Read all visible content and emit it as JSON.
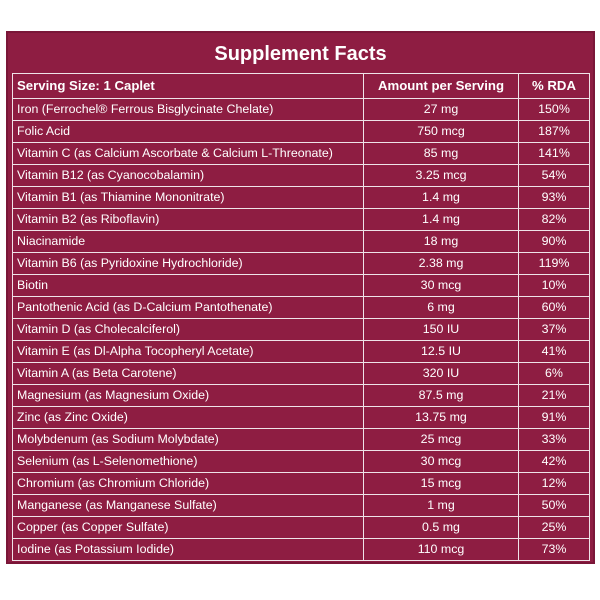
{
  "title": "Supplement Facts",
  "header": {
    "serving": "Serving Size: 1 Caplet",
    "amount": "Amount per Serving",
    "rda": "% RDA"
  },
  "rows": [
    {
      "name": "Iron (Ferrochel® Ferrous Bisglycinate Chelate)",
      "amount": "27 mg",
      "rda": "150%"
    },
    {
      "name": "Folic Acid",
      "amount": "750 mcg",
      "rda": "187%"
    },
    {
      "name": "Vitamin C (as Calcium Ascorbate & Calcium L-Threonate)",
      "amount": "85 mg",
      "rda": "141%"
    },
    {
      "name": "Vitamin B12 (as Cyanocobalamin)",
      "amount": "3.25 mcg",
      "rda": "54%"
    },
    {
      "name": "Vitamin B1 (as Thiamine Mononitrate)",
      "amount": "1.4 mg",
      "rda": "93%"
    },
    {
      "name": "Vitamin B2 (as Riboflavin)",
      "amount": "1.4 mg",
      "rda": "82%"
    },
    {
      "name": "Niacinamide",
      "amount": "18 mg",
      "rda": "90%"
    },
    {
      "name": "Vitamin B6 (as Pyridoxine Hydrochloride)",
      "amount": "2.38 mg",
      "rda": "119%"
    },
    {
      "name": "Biotin",
      "amount": "30 mcg",
      "rda": "10%"
    },
    {
      "name": "Pantothenic Acid (as D-Calcium Pantothenate)",
      "amount": "6 mg",
      "rda": "60%"
    },
    {
      "name": "Vitamin D (as Cholecalciferol)",
      "amount": "150 IU",
      "rda": "37%"
    },
    {
      "name": "Vitamin E (as Dl-Alpha Tocopheryl Acetate)",
      "amount": "12.5 IU",
      "rda": "41%"
    },
    {
      "name": "Vitamin A (as Beta Carotene)",
      "amount": "320 IU",
      "rda": "6%"
    },
    {
      "name": "Magnesium (as Magnesium Oxide)",
      "amount": "87.5 mg",
      "rda": "21%"
    },
    {
      "name": "Zinc (as Zinc Oxide)",
      "amount": "13.75 mg",
      "rda": "91%"
    },
    {
      "name": "Molybdenum (as Sodium Molybdate)",
      "amount": "25 mcg",
      "rda": "33%"
    },
    {
      "name": "Selenium (as L-Selenomethione)",
      "amount": "30 mcg",
      "rda": "42%"
    },
    {
      "name": "Chromium (as Chromium Chloride)",
      "amount": "15 mcg",
      "rda": "12%"
    },
    {
      "name": "Manganese (as Manganese Sulfate)",
      "amount": "1 mg",
      "rda": "50%"
    },
    {
      "name": "Copper (as Copper Sulfate)",
      "amount": "0.5 mg",
      "rda": "25%"
    },
    {
      "name": "Iodine (as Potassium Iodide)",
      "amount": "110 mcg",
      "rda": "73%"
    }
  ],
  "colors": {
    "background": "#8e1d42",
    "text": "#ffffff",
    "border": "#efe3e8"
  }
}
